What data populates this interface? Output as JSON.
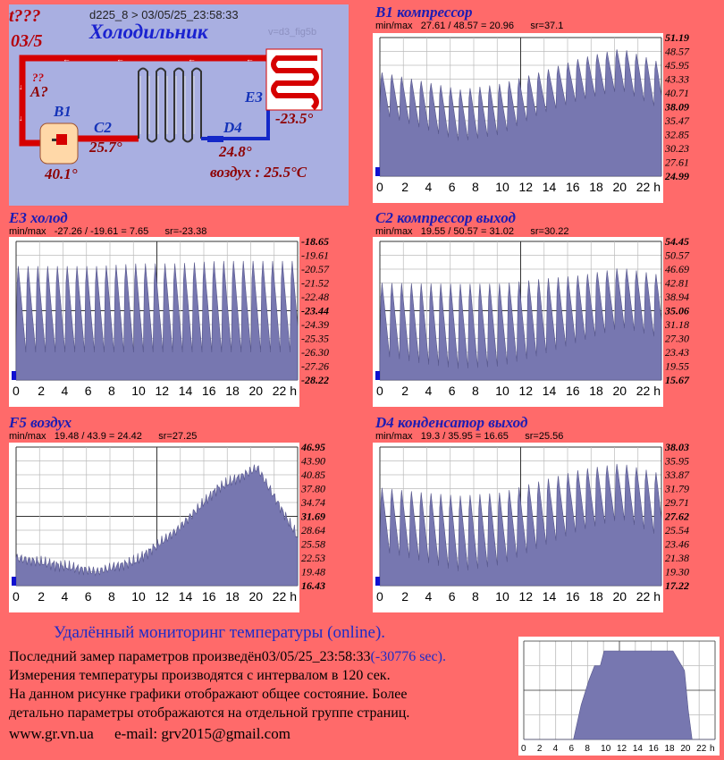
{
  "schema": {
    "id_text": "t???",
    "id_date": "03/5",
    "header": "d225_8  >   03/05/25_23:58:33",
    "title": "Холодильник",
    "version": "v=d3_fig5b",
    "unknown_mark": "??",
    "unknown_label": "A?",
    "labels": {
      "b1": "B1",
      "c2": "C2",
      "d4": "D4",
      "e3": "E3"
    },
    "values": {
      "b1": "40.1°",
      "c2": "25.7°",
      "d4": "24.8°",
      "e3": "-23.5°"
    },
    "air": "воздух : 25.5°C"
  },
  "charts": [
    {
      "title": "B1 компрессор",
      "info": "min/max   27.61 / 48.57 = 20.96      sr=37.1",
      "ticks": [
        "51.19",
        "48.57",
        "45.95",
        "43.33",
        "40.71",
        "38.09",
        "35.47",
        "32.85",
        "30.23",
        "27.61",
        "24.99"
      ],
      "bold_ticks": [
        0,
        5,
        10
      ],
      "xticks": [
        "0",
        "2",
        "4",
        "6",
        "8",
        "10",
        "12",
        "14",
        "16",
        "18",
        "20",
        "22 h"
      ],
      "pattern": "spiky",
      "base": [
        0.45,
        0.35,
        0.25,
        0.3,
        0.45,
        0.55,
        0.62,
        0.48
      ],
      "peak": [
        0.78,
        0.72,
        0.66,
        0.7,
        0.78,
        0.88,
        0.95,
        0.85
      ]
    },
    {
      "title": "E3 холод",
      "info": "min/max   -27.26 / -19.61 = 7.65      sr=-23.38",
      "ticks": [
        "-18.65",
        "-19.61",
        "-20.57",
        "-21.52",
        "-22.48",
        "-23.44",
        "-24.39",
        "-25.35",
        "-26.30",
        "-27.26",
        "-28.22"
      ],
      "bold_ticks": [
        0,
        5,
        10
      ],
      "xticks": [
        "0",
        "2",
        "4",
        "6",
        "8",
        "10",
        "12",
        "14",
        "16",
        "18",
        "20",
        "22 h"
      ],
      "pattern": "spiky",
      "base": [
        0.2,
        0.2,
        0.2,
        0.2,
        0.2,
        0.2,
        0.2,
        0.2
      ],
      "peak": [
        0.88,
        0.88,
        0.88,
        0.9,
        0.9,
        0.92,
        0.92,
        0.92
      ]
    },
    {
      "title": "C2 компрессор выход",
      "info": "min/max   19.55 / 50.57 = 31.02      sr=30.22",
      "ticks": [
        "54.45",
        "50.57",
        "46.69",
        "42.81",
        "38.94",
        "35.06",
        "31.18",
        "27.30",
        "23.43",
        "19.55",
        "15.67"
      ],
      "bold_ticks": [
        0,
        5,
        10
      ],
      "xticks": [
        "0",
        "2",
        "4",
        "6",
        "8",
        "10",
        "12",
        "14",
        "16",
        "18",
        "20",
        "22 h"
      ],
      "pattern": "spiky",
      "base": [
        0.18,
        0.12,
        0.08,
        0.1,
        0.18,
        0.28,
        0.38,
        0.3
      ],
      "peak": [
        0.75,
        0.75,
        0.75,
        0.75,
        0.78,
        0.8,
        0.85,
        0.8
      ]
    },
    {
      "title": "C2 компрессор выход",
      "info": "",
      "ticks": [],
      "bold_ticks": [],
      "xticks": [],
      "pattern": "none",
      "base": [],
      "peak": []
    },
    {
      "title": "F5 воздух",
      "info": "min/max   19.48 / 43.9 = 24.42      sr=27.25",
      "ticks": [
        "46.95",
        "43.90",
        "40.85",
        "37.80",
        "34.74",
        "31.69",
        "28.64",
        "25.58",
        "22.53",
        "19.48",
        "16.43"
      ],
      "bold_ticks": [
        0,
        5,
        10
      ],
      "xticks": [
        "0",
        "2",
        "4",
        "6",
        "8",
        "10",
        "12",
        "14",
        "16",
        "18",
        "20",
        "22 h"
      ],
      "pattern": "smooth",
      "base": [
        0.2,
        0.15,
        0.1,
        0.18,
        0.4,
        0.7,
        0.85,
        0.35
      ],
      "peak": []
    },
    {
      "title": "D4 конденсатор выход",
      "info": "min/max   19.3 / 35.95 = 16.65      sr=25.56",
      "ticks": [
        "38.03",
        "35.95",
        "33.87",
        "31.79",
        "29.71",
        "27.62",
        "25.54",
        "23.46",
        "21.38",
        "19.30",
        "17.22"
      ],
      "bold_ticks": [
        0,
        5,
        10
      ],
      "xticks": [
        "0",
        "2",
        "4",
        "6",
        "8",
        "10",
        "12",
        "14",
        "16",
        "18",
        "20",
        "22 h"
      ],
      "pattern": "spiky",
      "base": [
        0.25,
        0.18,
        0.1,
        0.15,
        0.28,
        0.4,
        0.48,
        0.35
      ],
      "peak": [
        0.75,
        0.72,
        0.7,
        0.72,
        0.8,
        0.88,
        0.92,
        0.85
      ]
    }
  ],
  "footer": {
    "title": "Удалённый мониторинг температуры (online).",
    "line1_a": "Последний замер параметров произведён",
    "line1_b": "03/05/25_23:58:33",
    "line1_c": "(-30776 sec).",
    "line2": "Измерения температуры  производятся с интервалом в 120 сек.",
    "line3": "На данном рисунке графики отображают общее состояние. Более",
    "line4": "детально параметры отображаются на отдельной группе страниц.",
    "site": "www.gr.vn.ua",
    "email": "e-mail: grv2015@gmail.com"
  },
  "mini_chart": {
    "xticks": [
      "0",
      "2",
      "4",
      "6",
      "8",
      "10",
      "12",
      "14",
      "16",
      "18",
      "20",
      "22",
      "h"
    ]
  }
}
